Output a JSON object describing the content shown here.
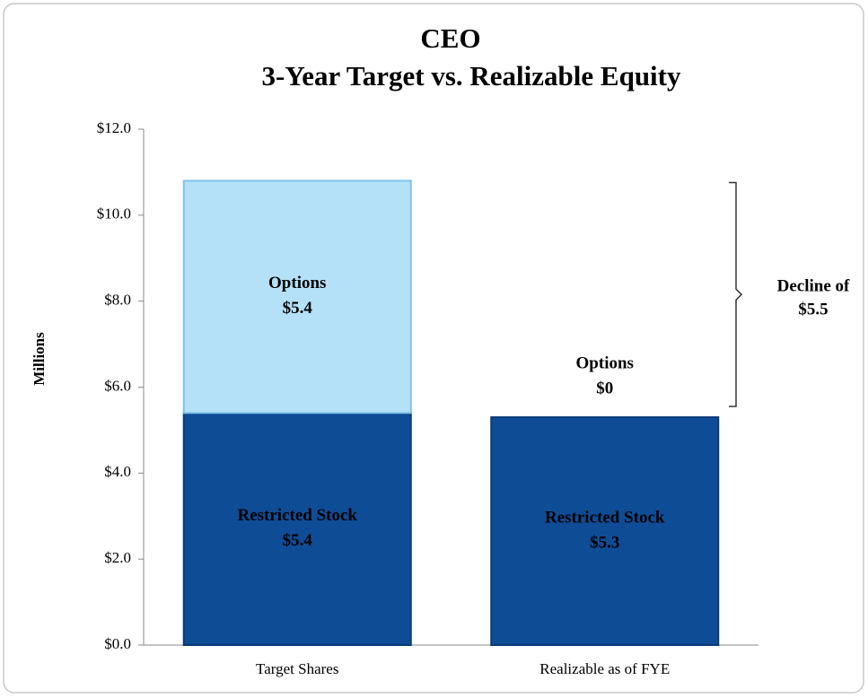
{
  "chart_data": {
    "type": "stacked_bar",
    "title": "CEO",
    "subtitle": "3-Year Target vs. Realizable Equity",
    "ylabel": "Millions",
    "categories": [
      "Target Shares",
      "Realizable as of FYE"
    ],
    "series": [
      {
        "name": "Restricted Stock",
        "color": "#0f4c96",
        "values": [
          5.4,
          5.3
        ],
        "value_labels": [
          "$5.4",
          "$5.3"
        ]
      },
      {
        "name": "Options",
        "color": "#b5e1f8",
        "values": [
          5.4,
          0
        ],
        "value_labels": [
          "$5.4",
          "$0"
        ]
      }
    ],
    "ylim": [
      0,
      12
    ],
    "yticks": [
      {
        "value": 0,
        "label": "$0.0"
      },
      {
        "value": 2,
        "label": "$2.0"
      },
      {
        "value": 4,
        "label": "$4.0"
      },
      {
        "value": 6,
        "label": "$6.0"
      },
      {
        "value": 8,
        "label": "$8.0"
      },
      {
        "value": 10,
        "label": "$10.0"
      },
      {
        "value": 12,
        "label": "$12.0"
      }
    ],
    "annotation": [
      "Decline of",
      "$5.5"
    ]
  }
}
